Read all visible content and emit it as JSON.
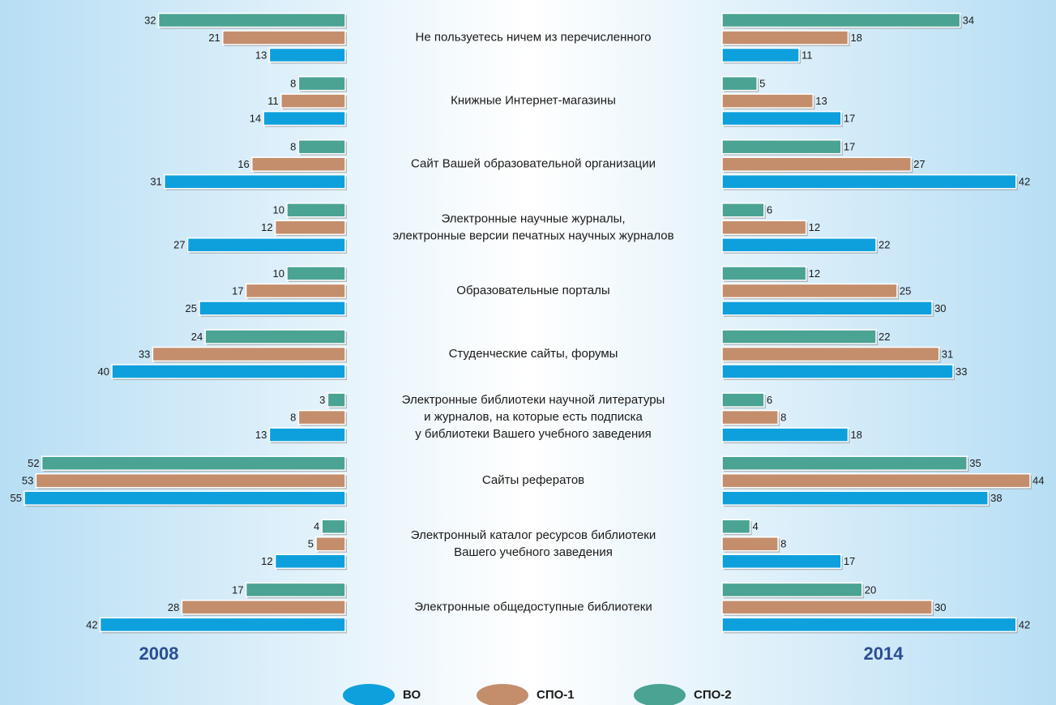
{
  "chart_data": {
    "type": "bar",
    "orientation": "horizontal",
    "categories": [
      [
        "Не пользуетесь ничем из перечисленного"
      ],
      [
        "Книжные Интернет-магазины"
      ],
      [
        "Сайт Вашей образовательной организации"
      ],
      [
        "Электронные научные журналы,",
        "электронные версии печатных научных журналов"
      ],
      [
        "Образовательные порталы"
      ],
      [
        "Студенческие сайты, форумы"
      ],
      [
        "Электронные библиотеки научной литературы",
        "и журналов, на которые есть подписка",
        "у библиотеки Вашего учебного заведения"
      ],
      [
        "Сайты рефератов"
      ],
      [
        "Электронный каталог ресурсов библиотеки",
        "Вашего учебного заведения"
      ],
      [
        "Электронные общедоступные библиотеки"
      ]
    ],
    "series": [
      {
        "name": "ВО",
        "color": "#0ea0dc"
      },
      {
        "name": "СПО-1",
        "color": "#c48e6c"
      },
      {
        "name": "СПО-2",
        "color": "#4aa393"
      }
    ],
    "panels": [
      {
        "title": "2008",
        "values": [
          [
            13,
            14,
            31,
            27,
            25,
            40,
            13,
            55,
            12,
            42
          ],
          [
            21,
            11,
            16,
            12,
            17,
            33,
            8,
            53,
            5,
            28
          ],
          [
            32,
            8,
            8,
            10,
            10,
            24,
            3,
            52,
            4,
            17
          ]
        ]
      },
      {
        "title": "2014",
        "values": [
          [
            11,
            17,
            42,
            22,
            30,
            33,
            18,
            38,
            17,
            42
          ],
          [
            18,
            13,
            27,
            12,
            25,
            31,
            8,
            44,
            8,
            30
          ],
          [
            34,
            5,
            17,
            6,
            12,
            22,
            6,
            35,
            4,
            20
          ]
        ]
      }
    ]
  }
}
